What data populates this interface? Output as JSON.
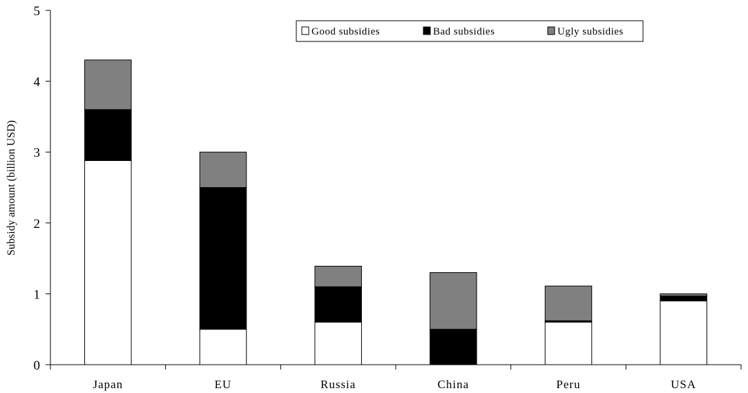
{
  "chart_data": {
    "type": "bar",
    "stacked": true,
    "title": "",
    "xlabel": "",
    "ylabel": "Subsidy amount (billion USD)",
    "ylim": [
      0,
      5
    ],
    "yticks": [
      "0",
      "1",
      "2",
      "3",
      "4",
      "5"
    ],
    "grid": false,
    "legend_position": "top-right",
    "categories": [
      "Japan",
      "EU",
      "Russia",
      "China",
      "Peru",
      "USA"
    ],
    "series": [
      {
        "name": "Good subsidies",
        "color": "#ffffff",
        "values": [
          2.88,
          0.5,
          0.6,
          0.0,
          0.6,
          0.9
        ]
      },
      {
        "name": "Bad subsidies",
        "color": "#000000",
        "values": [
          0.72,
          2.0,
          0.5,
          0.5,
          0.02,
          0.07
        ]
      },
      {
        "name": "Ugly subsidies",
        "color": "#808080",
        "values": [
          0.7,
          0.5,
          0.29,
          0.8,
          0.49,
          0.03
        ]
      }
    ]
  }
}
